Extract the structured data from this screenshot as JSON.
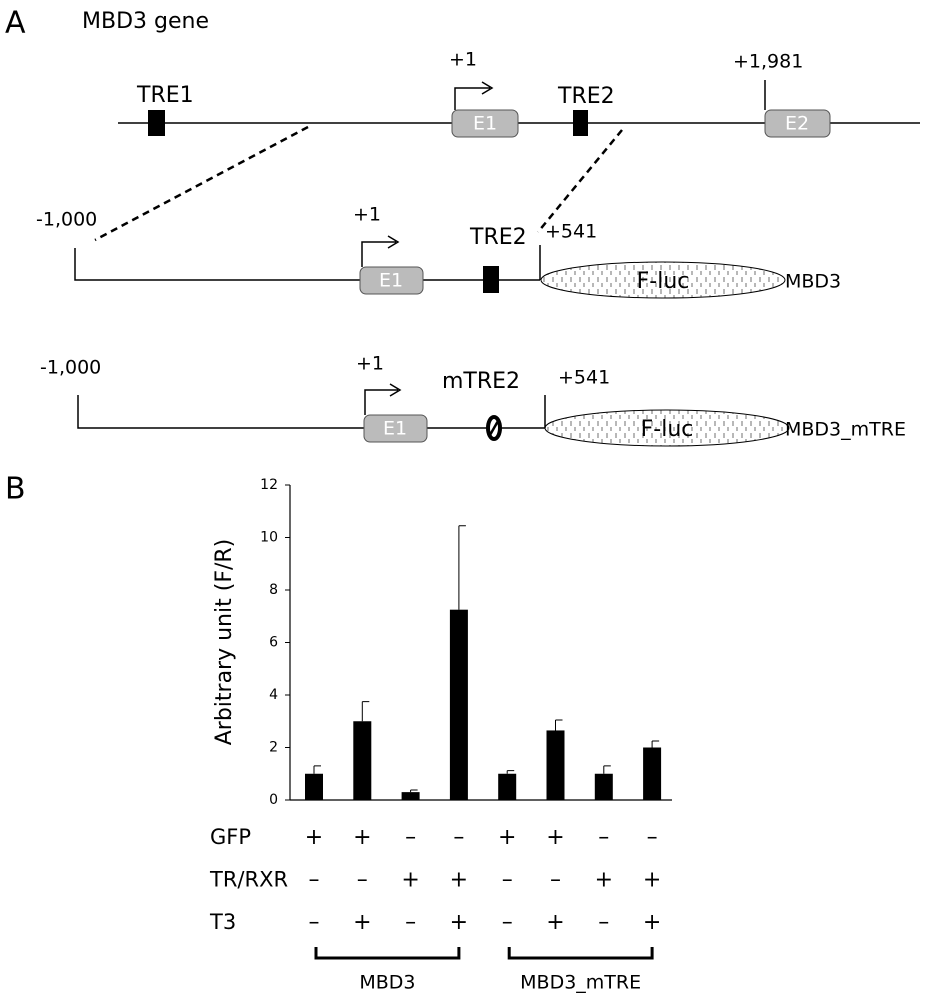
{
  "panel_a": {
    "label": "A",
    "title": "MBD3 gene",
    "gene": {
      "tre1": "TRE1",
      "tss": "+1",
      "exon1": "E1",
      "tre2": "TRE2",
      "exon2_pos": "+1,981",
      "exon2": "E2"
    },
    "constructs": [
      {
        "start": "-1,000",
        "tss": "+1",
        "exon1": "E1",
        "element": "TRE2",
        "end": "+541",
        "reporter": "F-luc",
        "name": "MBD3"
      },
      {
        "start": "-1,000",
        "tss": "+1",
        "exon1": "E1",
        "element": "mTRE2",
        "end": "+541",
        "reporter": "F-luc",
        "name": "MBD3_mTRE"
      }
    ]
  },
  "panel_b": {
    "label": "B"
  },
  "chart_data": {
    "type": "bar",
    "y_label": "Arbitrary unit (F/R)",
    "values": [
      1.0,
      3.0,
      0.3,
      7.25,
      1.0,
      2.65,
      1.0,
      2.0
    ],
    "errors": [
      0.3,
      0.75,
      0.08,
      3.2,
      0.12,
      0.4,
      0.3,
      0.25
    ],
    "color": "#000000",
    "ylim": [
      0,
      12
    ],
    "yticks": [
      0,
      2,
      4,
      6,
      8,
      10,
      12
    ],
    "conditions": [
      {
        "name": "GFP",
        "signs": [
          "+",
          "+",
          "–",
          "–",
          "+",
          "+",
          "–",
          "–"
        ]
      },
      {
        "name": "TR/RXR",
        "signs": [
          "–",
          "–",
          "+",
          "+",
          "–",
          "–",
          "+",
          "+"
        ]
      },
      {
        "name": "T3",
        "signs": [
          "–",
          "+",
          "–",
          "+",
          "–",
          "+",
          "–",
          "+"
        ]
      }
    ],
    "groups": [
      "MBD3",
      "MBD3_mTRE"
    ]
  }
}
